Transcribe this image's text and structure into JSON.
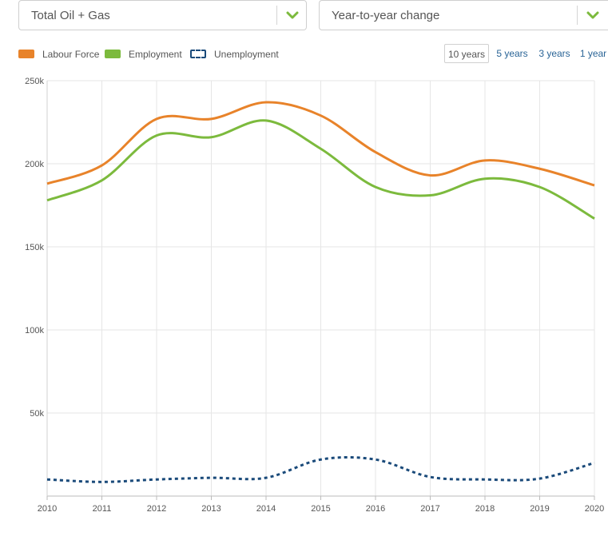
{
  "selectors": {
    "metric": {
      "value": "Total Oil + Gas"
    },
    "mode": {
      "value": "Year-to-year change"
    }
  },
  "ranges": {
    "items": [
      "10 years",
      "5 years",
      "3 years",
      "1 year"
    ],
    "active": "10 years"
  },
  "colors": {
    "accent": "#7cba3d",
    "link": "#2a6496",
    "labour_force": "#e8832a",
    "employment": "#7cba3d",
    "unemployment": "#1a4a7a"
  },
  "chart_data": {
    "type": "line",
    "x": [
      2010,
      2011,
      2012,
      2013,
      2014,
      2015,
      2016,
      2017,
      2018,
      2019,
      2020
    ],
    "x_tick_labels": [
      "2010",
      "2011",
      "2012",
      "2013",
      "2014",
      "2015",
      "2016",
      "2017",
      "2018",
      "2019",
      "2020"
    ],
    "y_tick_labels": [
      "250k",
      "200k",
      "150k",
      "100k",
      "50k"
    ],
    "y_ticks": [
      250000,
      200000,
      150000,
      100000,
      50000
    ],
    "ylim": [
      0,
      250000
    ],
    "xlim": [
      2010,
      2020
    ],
    "grid": true,
    "legend_position": "top-left",
    "series": [
      {
        "name": "Labour Force",
        "key": "labour_force",
        "style": "solid",
        "values": [
          188000,
          199000,
          227000,
          227000,
          237000,
          229000,
          207000,
          193000,
          202000,
          197000,
          187000
        ]
      },
      {
        "name": "Employment",
        "key": "employment",
        "style": "solid",
        "values": [
          178000,
          190000,
          217000,
          216000,
          226000,
          209000,
          186000,
          181000,
          191000,
          186000,
          167000
        ]
      },
      {
        "name": "Unemployment",
        "key": "unemployment",
        "style": "dotted",
        "values": [
          10000,
          8500,
          10000,
          11000,
          11000,
          22000,
          22000,
          11500,
          10000,
          10500,
          20000
        ]
      }
    ]
  }
}
